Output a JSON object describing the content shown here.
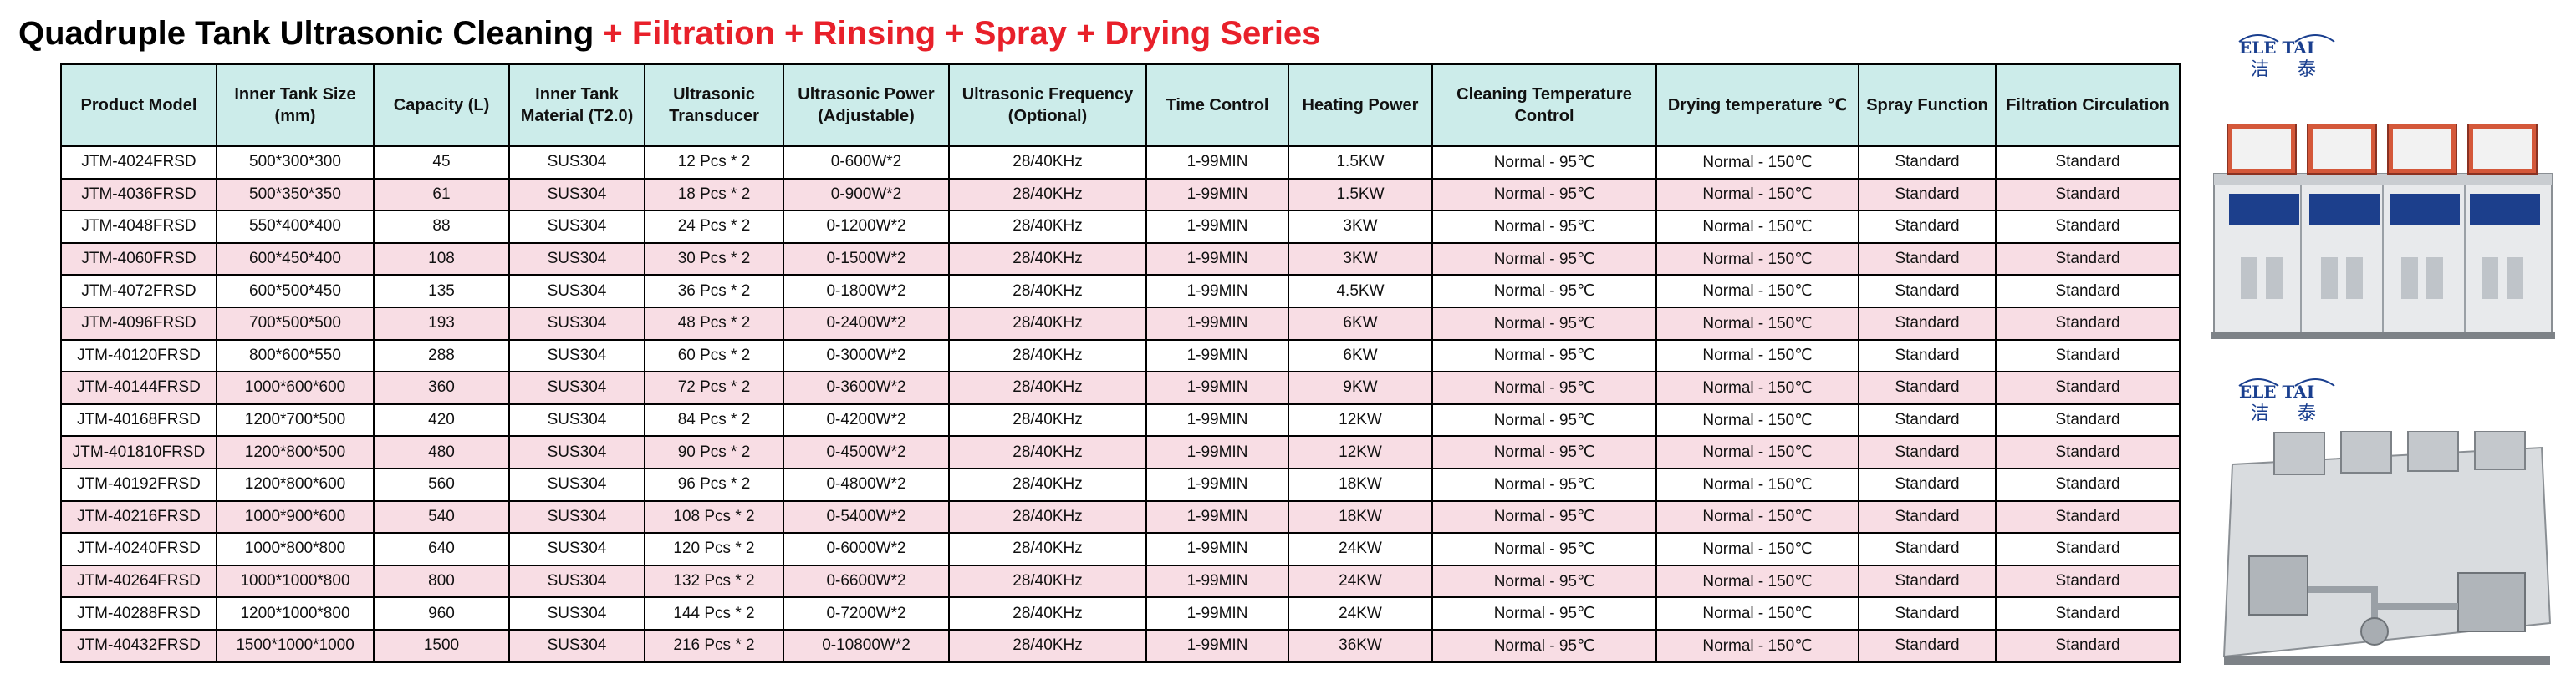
{
  "title": {
    "main": "Quadruple Tank Ultrasonic Cleaning",
    "highlight": " + Filtration + Rinsing + Spray + Drying Series"
  },
  "table": {
    "headers": [
      "Product Model",
      "Inner Tank Size (mm)",
      "Capacity (L)",
      "Inner Tank Material (T2.0)",
      "Ultrasonic Transducer",
      "Ultrasonic Power (Adjustable)",
      "Ultrasonic Frequency (Optional)",
      "Time Control",
      "Heating Power",
      "Cleaning Temperature Control",
      "Drying temperature ℃",
      "Spray Function",
      "Filtration Circulation"
    ],
    "rows": [
      [
        "JTM-4024FRSD",
        "500*300*300",
        "45",
        "SUS304",
        "12 Pcs * 2",
        "0-600W*2",
        "28/40KHz",
        "1-99MIN",
        "1.5KW",
        "Normal - 95℃",
        "Normal - 150℃",
        "Standard",
        "Standard"
      ],
      [
        "JTM-4036FRSD",
        "500*350*350",
        "61",
        "SUS304",
        "18 Pcs * 2",
        "0-900W*2",
        "28/40KHz",
        "1-99MIN",
        "1.5KW",
        "Normal - 95℃",
        "Normal - 150℃",
        "Standard",
        "Standard"
      ],
      [
        "JTM-4048FRSD",
        "550*400*400",
        "88",
        "SUS304",
        "24 Pcs * 2",
        "0-1200W*2",
        "28/40KHz",
        "1-99MIN",
        "3KW",
        "Normal - 95℃",
        "Normal - 150℃",
        "Standard",
        "Standard"
      ],
      [
        "JTM-4060FRSD",
        "600*450*400",
        "108",
        "SUS304",
        "30 Pcs * 2",
        "0-1500W*2",
        "28/40KHz",
        "1-99MIN",
        "3KW",
        "Normal - 95℃",
        "Normal - 150℃",
        "Standard",
        "Standard"
      ],
      [
        "JTM-4072FRSD",
        "600*500*450",
        "135",
        "SUS304",
        "36 Pcs * 2",
        "0-1800W*2",
        "28/40KHz",
        "1-99MIN",
        "4.5KW",
        "Normal - 95℃",
        "Normal - 150℃",
        "Standard",
        "Standard"
      ],
      [
        "JTM-4096FRSD",
        "700*500*500",
        "193",
        "SUS304",
        "48 Pcs * 2",
        "0-2400W*2",
        "28/40KHz",
        "1-99MIN",
        "6KW",
        "Normal - 95℃",
        "Normal - 150℃",
        "Standard",
        "Standard"
      ],
      [
        "JTM-40120FRSD",
        "800*600*550",
        "288",
        "SUS304",
        "60 Pcs * 2",
        "0-3000W*2",
        "28/40KHz",
        "1-99MIN",
        "6KW",
        "Normal - 95℃",
        "Normal - 150℃",
        "Standard",
        "Standard"
      ],
      [
        "JTM-40144FRSD",
        "1000*600*600",
        "360",
        "SUS304",
        "72 Pcs * 2",
        "0-3600W*2",
        "28/40KHz",
        "1-99MIN",
        "9KW",
        "Normal - 95℃",
        "Normal - 150℃",
        "Standard",
        "Standard"
      ],
      [
        "JTM-40168FRSD",
        "1200*700*500",
        "420",
        "SUS304",
        "84 Pcs * 2",
        "0-4200W*2",
        "28/40KHz",
        "1-99MIN",
        "12KW",
        "Normal - 95℃",
        "Normal - 150℃",
        "Standard",
        "Standard"
      ],
      [
        "JTM-401810FRSD",
        "1200*800*500",
        "480",
        "SUS304",
        "90 Pcs * 2",
        "0-4500W*2",
        "28/40KHz",
        "1-99MIN",
        "12KW",
        "Normal - 95℃",
        "Normal - 150℃",
        "Standard",
        "Standard"
      ],
      [
        "JTM-40192FRSD",
        "1200*800*600",
        "560",
        "SUS304",
        "96 Pcs * 2",
        "0-4800W*2",
        "28/40KHz",
        "1-99MIN",
        "18KW",
        "Normal - 95℃",
        "Normal - 150℃",
        "Standard",
        "Standard"
      ],
      [
        "JTM-40216FRSD",
        "1000*900*600",
        "540",
        "SUS304",
        "108 Pcs * 2",
        "0-5400W*2",
        "28/40KHz",
        "1-99MIN",
        "18KW",
        "Normal - 95℃",
        "Normal - 150℃",
        "Standard",
        "Standard"
      ],
      [
        "JTM-40240FRSD",
        "1000*800*800",
        "640",
        "SUS304",
        "120 Pcs * 2",
        "0-6000W*2",
        "28/40KHz",
        "1-99MIN",
        "24KW",
        "Normal - 95℃",
        "Normal - 150℃",
        "Standard",
        "Standard"
      ],
      [
        "JTM-40264FRSD",
        "1000*1000*800",
        "800",
        "SUS304",
        "132 Pcs * 2",
        "0-6600W*2",
        "28/40KHz",
        "1-99MIN",
        "24KW",
        "Normal - 95℃",
        "Normal - 150℃",
        "Standard",
        "Standard"
      ],
      [
        "JTM-40288FRSD",
        "1200*1000*800",
        "960",
        "SUS304",
        "144 Pcs * 2",
        "0-7200W*2",
        "28/40KHz",
        "1-99MIN",
        "24KW",
        "Normal - 95℃",
        "Normal - 150℃",
        "Standard",
        "Standard"
      ],
      [
        "JTM-40432FRSD",
        "1500*1000*1000",
        "1500",
        "SUS304",
        "216 Pcs * 2",
        "0-10800W*2",
        "28/40KHz",
        "1-99MIN",
        "36KW",
        "Normal - 95℃",
        "Normal - 150℃",
        "Standard",
        "Standard"
      ]
    ]
  },
  "logo": {
    "latin": "ELE TAI",
    "chinese_left": "洁",
    "chinese_right": "泰"
  },
  "colors": {
    "header_bg": "#ccecea",
    "even_row_bg": "#f8dde4",
    "title_highlight": "#e8202a",
    "logo_blue": "#1a3f8f"
  }
}
